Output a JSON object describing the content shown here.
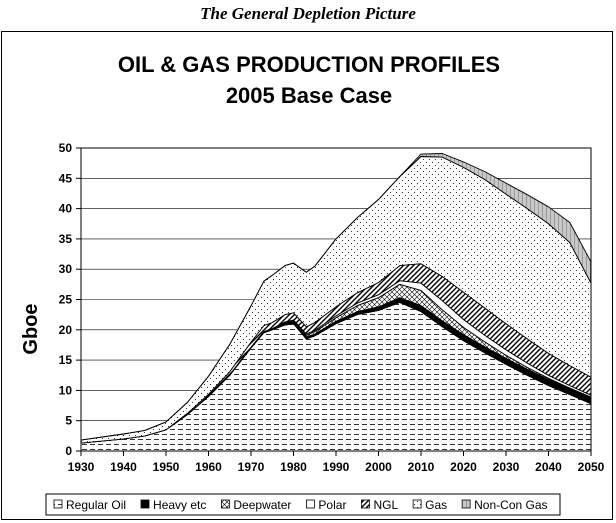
{
  "caption": "The General Depletion Picture",
  "chart_data": {
    "type": "area",
    "stacked": true,
    "title": "OIL & GAS PRODUCTION PROFILES",
    "subtitle": "2005 Base Case",
    "xlabel": "",
    "ylabel": "Gboe",
    "xlim": [
      1930,
      2050
    ],
    "ylim": [
      0,
      50
    ],
    "x_ticks": [
      1930,
      1940,
      1950,
      1960,
      1970,
      1980,
      1990,
      2000,
      2010,
      2020,
      2030,
      2040,
      2050
    ],
    "y_ticks": [
      0,
      5,
      10,
      15,
      20,
      25,
      30,
      35,
      40,
      45,
      50
    ],
    "grid": "horizontal",
    "legend_position": "bottom",
    "x": [
      1930,
      1940,
      1945,
      1950,
      1955,
      1960,
      1965,
      1970,
      1973,
      1975,
      1978,
      1980,
      1983,
      1985,
      1990,
      1995,
      2000,
      2005,
      2010,
      2015,
      2020,
      2025,
      2030,
      2035,
      2040,
      2045,
      2050
    ],
    "series": [
      {
        "name": "Regular Oil",
        "pattern": "dash",
        "values": [
          1.3,
          2.0,
          2.5,
          3.5,
          6.0,
          9.0,
          12.5,
          17.0,
          19.5,
          20.0,
          20.8,
          21.0,
          18.5,
          19.0,
          21.0,
          22.5,
          23.2,
          24.5,
          23.0,
          20.5,
          18.2,
          16.2,
          14.3,
          12.5,
          10.8,
          9.3,
          7.8
        ]
      },
      {
        "name": "Heavy etc",
        "pattern": "black",
        "values": [
          0,
          0,
          0,
          0,
          0,
          0.05,
          0.1,
          0.15,
          0.2,
          0.2,
          0.3,
          0.3,
          0.3,
          0.3,
          0.4,
          0.5,
          0.6,
          0.8,
          1.0,
          1.0,
          1.0,
          1.0,
          1.0,
          1.0,
          1.0,
          1.0,
          1.0
        ]
      },
      {
        "name": "Deepwater",
        "pattern": "hatch-cross",
        "values": [
          0,
          0,
          0,
          0,
          0,
          0,
          0,
          0,
          0,
          0,
          0.1,
          0.2,
          0.3,
          0.4,
          0.6,
          1.0,
          1.5,
          2.2,
          2.5,
          1.8,
          1.2,
          0.8,
          0.5,
          0.3,
          0.2,
          0.1,
          0.1
        ]
      },
      {
        "name": "Polar",
        "pattern": "plain",
        "values": [
          0,
          0,
          0,
          0,
          0,
          0,
          0,
          0,
          0,
          0,
          0.1,
          0.1,
          0.2,
          0.2,
          0.3,
          0.4,
          0.5,
          0.6,
          1.2,
          1.5,
          1.3,
          1.1,
          0.9,
          0.7,
          0.5,
          0.4,
          0.3
        ]
      },
      {
        "name": "NGL",
        "pattern": "diagonal",
        "values": [
          0,
          0,
          0,
          0,
          0.2,
          0.3,
          0.5,
          0.8,
          1.0,
          1.0,
          1.2,
          1.2,
          1.2,
          1.3,
          1.5,
          1.7,
          2.0,
          2.5,
          3.2,
          4.0,
          4.5,
          4.5,
          4.3,
          4.0,
          3.6,
          3.3,
          3.0
        ]
      },
      {
        "name": "Gas",
        "pattern": "dots",
        "values": [
          0.5,
          0.8,
          0.9,
          1.3,
          1.8,
          3.0,
          4.5,
          6.0,
          7.3,
          7.8,
          8.1,
          8.2,
          9.0,
          9.3,
          11.2,
          12.4,
          13.7,
          14.7,
          17.7,
          19.7,
          20.6,
          21.2,
          21.4,
          21.5,
          21.4,
          20.3,
          15.5
        ]
      },
      {
        "name": "Non-Con Gas",
        "pattern": "grey",
        "values": [
          0,
          0,
          0,
          0,
          0,
          0,
          0,
          0,
          0,
          0,
          0,
          0,
          0,
          0,
          0,
          0,
          0,
          0,
          0.4,
          0.6,
          0.9,
          1.3,
          1.8,
          2.3,
          2.8,
          3.3,
          3.5
        ]
      }
    ]
  }
}
